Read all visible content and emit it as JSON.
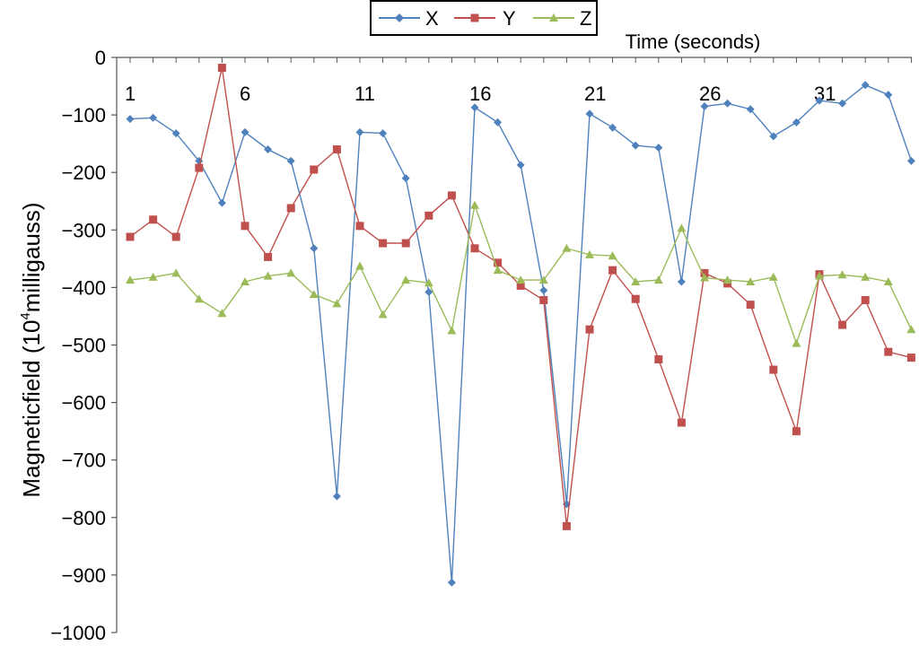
{
  "chart_data": {
    "type": "line",
    "xlabel": "Time (seconds)",
    "ylabel": {
      "prefix": "Magneticfield (10",
      "sup": "4",
      "suffix": "milligauss)"
    },
    "ylim": [
      -1000,
      0
    ],
    "y_ticks": [
      "0",
      "−100",
      "−200",
      "−300",
      "−400",
      "−500",
      "−600",
      "−700",
      "−800",
      "−900",
      "−1000"
    ],
    "x_tick_labels": [
      "1",
      "6",
      "11",
      "16",
      "21",
      "26",
      "31"
    ],
    "x": [
      1,
      2,
      3,
      4,
      5,
      6,
      7,
      8,
      9,
      10,
      11,
      12,
      13,
      14,
      15,
      16,
      17,
      18,
      19,
      20,
      21,
      22,
      23,
      24,
      25,
      26,
      27,
      28,
      29,
      30,
      31,
      32,
      33,
      34,
      35
    ],
    "legend_position": "top-center",
    "series": [
      {
        "name": "X",
        "color": "#4f81bd",
        "marker": "diamond",
        "values": [
          -107,
          -105,
          -132,
          -180,
          -253,
          -130,
          -160,
          -180,
          -332,
          -763,
          -130,
          -132,
          -210,
          -408,
          -913,
          -87,
          -113,
          -187,
          -405,
          -777,
          -98,
          -122,
          -153,
          -157,
          -390,
          -85,
          -80,
          -90,
          -137,
          -113,
          -75,
          -80,
          -48,
          -65,
          -180
        ]
      },
      {
        "name": "Y",
        "color": "#c0504d",
        "marker": "square",
        "values": [
          -312,
          -282,
          -312,
          -192,
          -18,
          -293,
          -347,
          -262,
          -195,
          -160,
          -293,
          -323,
          -323,
          -275,
          -240,
          -332,
          -357,
          -397,
          -422,
          -815,
          -473,
          -370,
          -420,
          -525,
          -635,
          -375,
          -393,
          -430,
          -543,
          -650,
          -377,
          -465,
          -422,
          -512,
          -522
        ]
      },
      {
        "name": "Z",
        "color": "#9bbb59",
        "marker": "triangle",
        "values": [
          -387,
          -382,
          -375,
          -420,
          -445,
          -390,
          -380,
          -375,
          -412,
          -428,
          -363,
          -447,
          -387,
          -392,
          -475,
          -257,
          -370,
          -387,
          -387,
          -332,
          -343,
          -345,
          -390,
          -387,
          -297,
          -383,
          -387,
          -390,
          -382,
          -497,
          -380,
          -378,
          -382,
          -390,
          -473
        ]
      }
    ]
  }
}
